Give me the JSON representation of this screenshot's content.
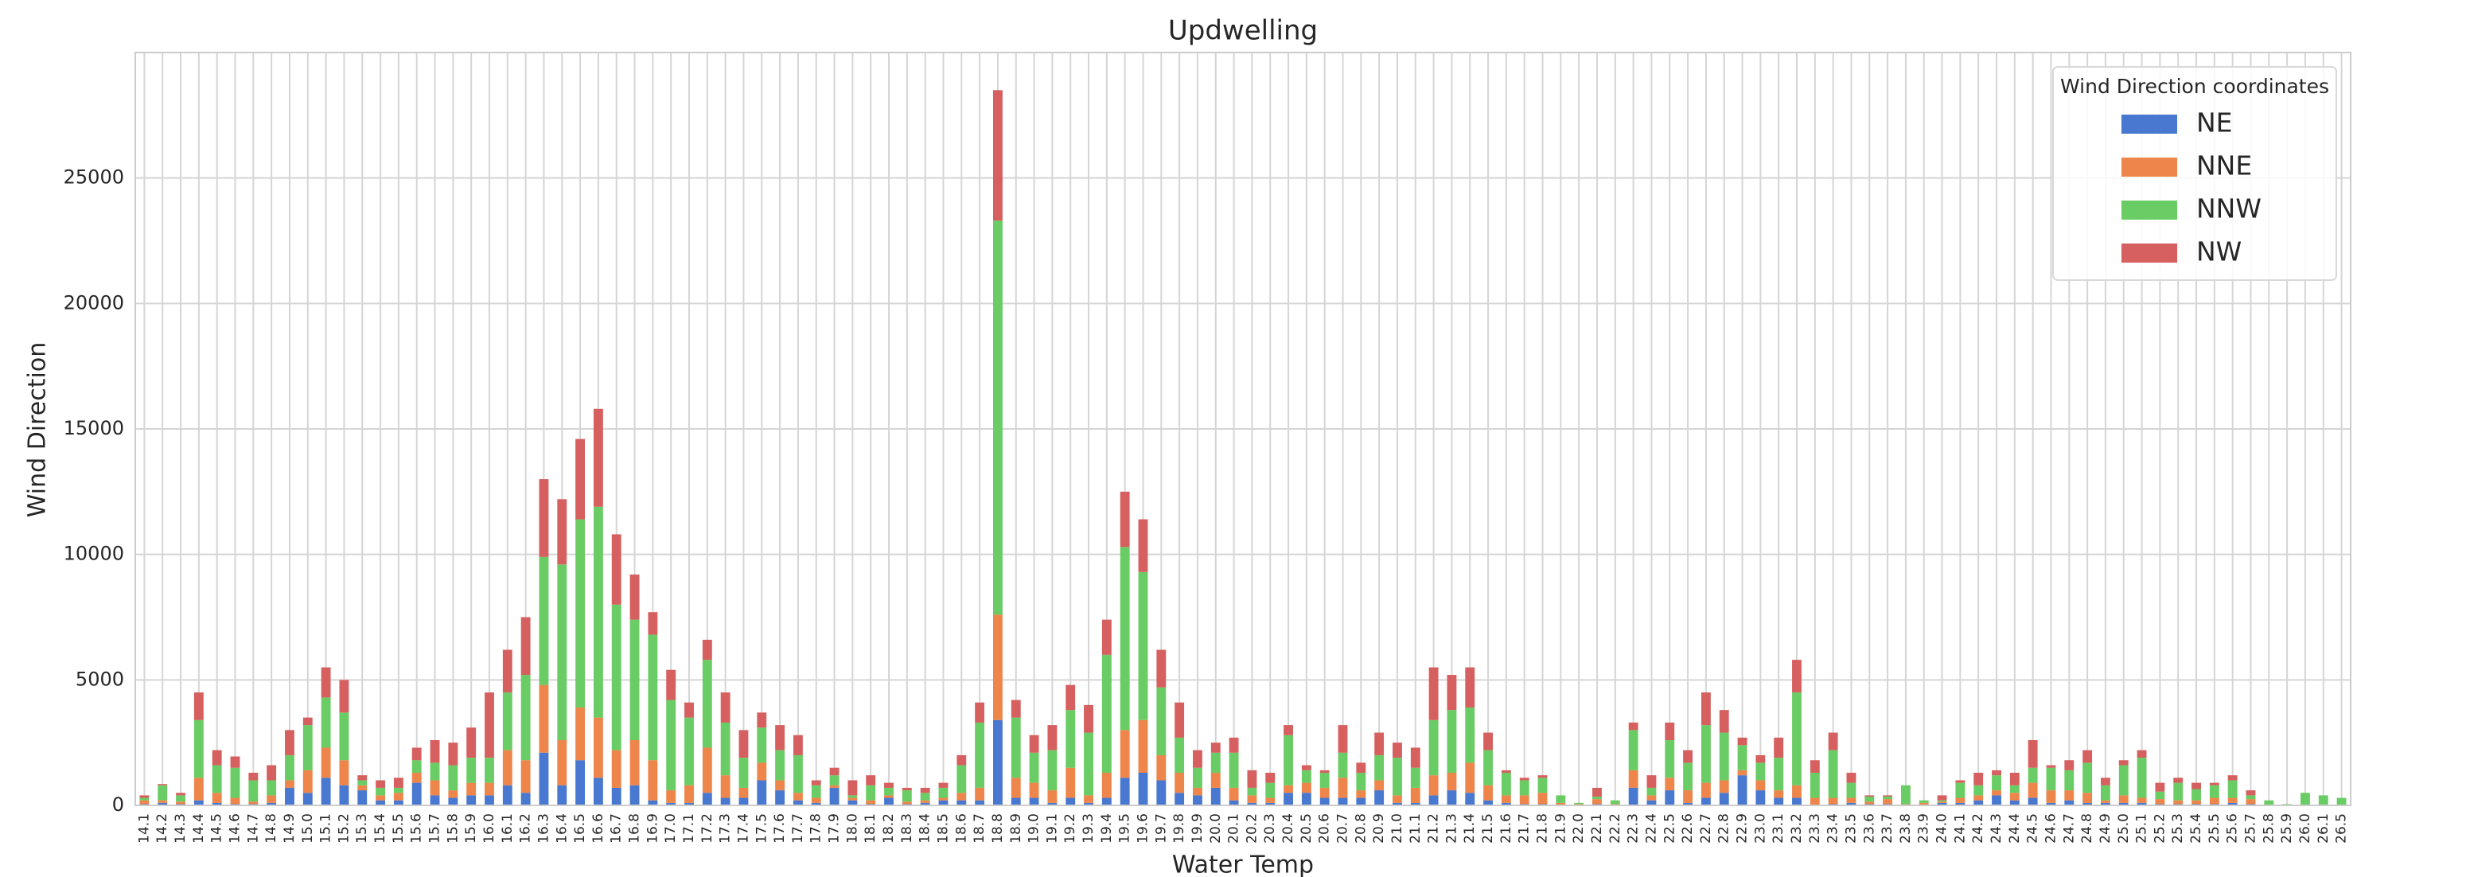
{
  "chart_data": {
    "type": "stacked_bar",
    "title": "Updwelling",
    "x_label": "Water Temp",
    "y_label": "Wind Direction",
    "legend_title": "Wind Direction coordinates",
    "legend_position": "upper right",
    "grid": true,
    "categories": [
      "14.1",
      "14.2",
      "14.3",
      "14.4",
      "14.5",
      "14.6",
      "14.7",
      "14.8",
      "14.9",
      "15.0",
      "15.1",
      "15.2",
      "15.3",
      "15.4",
      "15.5",
      "15.6",
      "15.7",
      "15.8",
      "15.9",
      "16.0",
      "16.1",
      "16.2",
      "16.3",
      "16.4",
      "16.5",
      "16.6",
      "16.7",
      "16.8",
      "16.9",
      "17.0",
      "17.1",
      "17.2",
      "17.3",
      "17.4",
      "17.5",
      "17.6",
      "17.7",
      "17.8",
      "17.9",
      "18.0",
      "18.1",
      "18.2",
      "18.3",
      "18.4",
      "18.5",
      "18.6",
      "18.7",
      "18.8",
      "18.9",
      "19.0",
      "19.1",
      "19.2",
      "19.3",
      "19.4",
      "19.5",
      "19.6",
      "19.7",
      "19.8",
      "19.9",
      "20.0",
      "20.1",
      "20.2",
      "20.3",
      "20.4",
      "20.5",
      "20.6",
      "20.7",
      "20.8",
      "20.9",
      "21.0",
      "21.1",
      "21.2",
      "21.3",
      "21.4",
      "21.5",
      "21.6",
      "21.7",
      "21.8",
      "21.9",
      "22.0",
      "22.1",
      "22.2",
      "22.3",
      "22.4",
      "22.5",
      "22.6",
      "22.7",
      "22.8",
      "22.9",
      "23.0",
      "23.1",
      "23.2",
      "23.3",
      "23.4",
      "23.5",
      "23.6",
      "23.7",
      "23.8",
      "23.9",
      "24.0",
      "24.1",
      "24.2",
      "24.3",
      "24.4",
      "24.5",
      "24.6",
      "24.7",
      "24.8",
      "24.9",
      "25.0",
      "25.1",
      "25.2",
      "25.3",
      "25.4",
      "25.5",
      "25.6",
      "25.7",
      "25.8",
      "25.9",
      "26.0",
      "26.1",
      "26.5"
    ],
    "series": [
      {
        "name": "NE",
        "color": "#4878d0",
        "values": [
          50,
          100,
          50,
          200,
          100,
          50,
          50,
          100,
          700,
          500,
          1100,
          800,
          600,
          200,
          200,
          900,
          400,
          300,
          400,
          400,
          800,
          500,
          2100,
          800,
          1800,
          1100,
          700,
          800,
          200,
          100,
          100,
          500,
          300,
          300,
          1000,
          600,
          200,
          100,
          700,
          200,
          50,
          300,
          50,
          100,
          200,
          200,
          200,
          3400,
          300,
          300,
          100,
          300,
          100,
          300,
          1100,
          1300,
          1000,
          500,
          400,
          700,
          200,
          100,
          100,
          500,
          500,
          300,
          300,
          300,
          600,
          100,
          100,
          400,
          600,
          500,
          200,
          100,
          50,
          50,
          0,
          0,
          50,
          0,
          700,
          200,
          600,
          100,
          300,
          500,
          1200,
          600,
          300,
          300,
          0,
          50,
          100,
          50,
          50,
          0,
          0,
          100,
          100,
          200,
          400,
          200,
          300,
          100,
          200,
          100,
          100,
          100,
          100,
          50,
          50,
          50,
          50,
          100,
          50,
          0,
          0,
          0,
          0,
          0
        ]
      },
      {
        "name": "NNE",
        "color": "#ee854a",
        "values": [
          150,
          100,
          100,
          900,
          400,
          250,
          100,
          300,
          300,
          900,
          1200,
          1000,
          200,
          200,
          300,
          400,
          600,
          300,
          500,
          500,
          1400,
          1300,
          2700,
          1800,
          2100,
          2400,
          1500,
          1800,
          1600,
          500,
          700,
          1800,
          900,
          400,
          700,
          400,
          300,
          200,
          100,
          100,
          150,
          100,
          100,
          100,
          100,
          300,
          500,
          4200,
          800,
          600,
          500,
          1200,
          300,
          1000,
          1900,
          2100,
          1000,
          800,
          300,
          600,
          500,
          300,
          200,
          300,
          400,
          400,
          800,
          300,
          400,
          300,
          600,
          800,
          700,
          1200,
          600,
          300,
          350,
          450,
          100,
          50,
          200,
          50,
          700,
          200,
          500,
          500,
          600,
          500,
          200,
          400,
          300,
          500,
          300,
          250,
          200,
          100,
          200,
          50,
          100,
          50,
          200,
          200,
          200,
          300,
          600,
          500,
          400,
          400,
          100,
          300,
          200,
          200,
          150,
          150,
          250,
          200,
          200,
          0,
          0,
          0,
          0,
          0
        ]
      },
      {
        "name": "NNW",
        "color": "#6acc64",
        "values": [
          100,
          600,
          250,
          2300,
          1100,
          1200,
          850,
          600,
          1000,
          1800,
          2000,
          1900,
          200,
          300,
          200,
          500,
          700,
          1000,
          1000,
          1000,
          2300,
          3400,
          5100,
          7000,
          7500,
          8400,
          5800,
          4800,
          5000,
          3600,
          2700,
          3500,
          2100,
          1200,
          1400,
          1200,
          1500,
          500,
          400,
          100,
          600,
          300,
          450,
          300,
          400,
          1100,
          2600,
          15700,
          2400,
          1200,
          1600,
          2300,
          2500,
          4700,
          7300,
          5900,
          2700,
          1400,
          800,
          800,
          1400,
          300,
          600,
          2000,
          500,
          600,
          1000,
          700,
          1000,
          1500,
          800,
          2200,
          2500,
          2200,
          1400,
          900,
          600,
          600,
          300,
          50,
          100,
          150,
          1600,
          300,
          1500,
          1100,
          2300,
          1900,
          1000,
          700,
          1300,
          3700,
          1000,
          1900,
          600,
          200,
          100,
          750,
          100,
          50,
          600,
          400,
          600,
          300,
          600,
          900,
          800,
          1200,
          600,
          1200,
          1600,
          300,
          700,
          450,
          500,
          700,
          150,
          200,
          50,
          500,
          400,
          300
        ]
      },
      {
        "name": "NW",
        "color": "#d65f5f",
        "values": [
          100,
          50,
          100,
          1100,
          600,
          450,
          300,
          600,
          1000,
          300,
          1200,
          1300,
          200,
          300,
          400,
          500,
          900,
          900,
          1200,
          2600,
          1700,
          2300,
          3100,
          2600,
          3200,
          3900,
          2800,
          1800,
          900,
          1200,
          600,
          800,
          1200,
          1100,
          600,
          1000,
          800,
          200,
          300,
          600,
          400,
          200,
          100,
          200,
          200,
          400,
          800,
          5200,
          700,
          700,
          1000,
          1000,
          1100,
          1400,
          2200,
          2100,
          1500,
          1400,
          700,
          400,
          600,
          700,
          400,
          400,
          200,
          100,
          1100,
          400,
          900,
          600,
          800,
          2100,
          1400,
          1600,
          700,
          100,
          100,
          100,
          0,
          0,
          350,
          0,
          300,
          500,
          700,
          500,
          1300,
          900,
          300,
          300,
          800,
          1300,
          500,
          700,
          400,
          50,
          50,
          0,
          0,
          200,
          100,
          500,
          200,
          500,
          1100,
          100,
          400,
          500,
          300,
          200,
          300,
          350,
          200,
          250,
          100,
          200,
          200,
          0,
          0,
          0,
          0,
          0
        ]
      }
    ],
    "ylim": [
      0,
      30000
    ],
    "yticks": [
      0,
      5000,
      10000,
      15000,
      20000,
      25000
    ]
  }
}
